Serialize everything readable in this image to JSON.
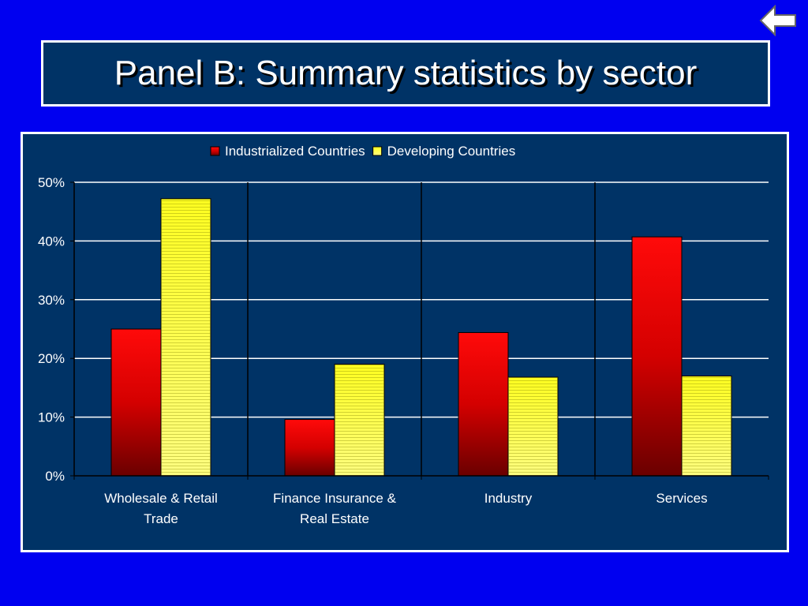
{
  "slide": {
    "title": "Panel B: Summary statistics by sector",
    "nav_icon": "back-arrow-icon"
  },
  "colors": {
    "background": "#0000f0",
    "panel": "#003366",
    "series_industrialized": "#e00000",
    "series_developing": "#ffff60"
  },
  "chart_data": {
    "type": "bar",
    "title": "",
    "xlabel": "",
    "ylabel": "",
    "ylim": [
      0,
      50
    ],
    "y_ticks": [
      "0%",
      "10%",
      "20%",
      "30%",
      "40%",
      "50%"
    ],
    "categories": [
      [
        "Wholesale & Retail",
        "Trade"
      ],
      [
        "Finance Insurance &",
        "Real Estate"
      ],
      [
        "Industry"
      ],
      [
        "Services"
      ]
    ],
    "series": [
      {
        "name": "Industrialized Countries",
        "values": [
          25.0,
          9.6,
          24.4,
          40.7
        ]
      },
      {
        "name": "Developing Countries",
        "values": [
          47.2,
          19.0,
          16.8,
          17.0
        ]
      }
    ],
    "legend_position": "top",
    "grid": true
  }
}
